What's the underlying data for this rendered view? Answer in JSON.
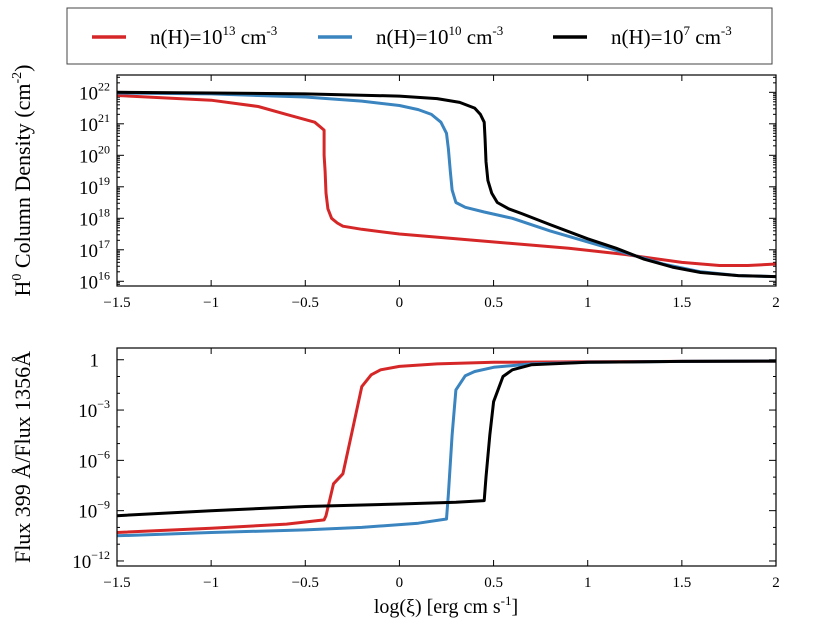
{
  "legend": {
    "entries": [
      {
        "base": "n(H)=10",
        "exp": "13",
        "unit": " cm",
        "unit_exp": "-3",
        "color": "#d62728"
      },
      {
        "base": "n(H)=10",
        "exp": "10",
        "unit": " cm",
        "unit_exp": "-3",
        "color": "#3a84c0"
      },
      {
        "base": "n(H)=10",
        "exp": "7",
        "unit": " cm",
        "unit_exp": "-3",
        "color": "#000000"
      }
    ]
  },
  "xlabel": {
    "pre": "log(ξ) [erg cm s",
    "sup": "-1",
    "post": "]"
  },
  "chart_data": [
    {
      "type": "line",
      "ylabel": {
        "pre": "H",
        "sup1": "0",
        "mid": " Column Density (cm",
        "sup2": "-2",
        "post": ")"
      },
      "xlim": [
        -1.5,
        2
      ],
      "ylim_log10": [
        15.85,
        22.55
      ],
      "xticks": [
        -1.5,
        -1,
        -0.5,
        0,
        0.5,
        1,
        1.5,
        2
      ],
      "xtick_labels": [
        "−1.5",
        "−1",
        "−0.5",
        "0",
        "0.5",
        "1",
        "1.5",
        "2"
      ],
      "yticks": [
        {
          "value": 16,
          "base": "10",
          "exp": "16"
        },
        {
          "value": 17,
          "base": "10",
          "exp": "17"
        },
        {
          "value": 18,
          "base": "10",
          "exp": "18"
        },
        {
          "value": 19,
          "base": "10",
          "exp": "19"
        },
        {
          "value": 20,
          "base": "10",
          "exp": "20"
        },
        {
          "value": 21,
          "base": "10",
          "exp": "21"
        },
        {
          "value": 22,
          "base": "10",
          "exp": "22"
        }
      ],
      "series": [
        {
          "name": "n(H)=1e13",
          "color": "#d62728",
          "points": [
            [
              -1.5,
              21.9
            ],
            [
              -1.0,
              21.75
            ],
            [
              -0.75,
              21.55
            ],
            [
              -0.6,
              21.3
            ],
            [
              -0.45,
              21.05
            ],
            [
              -0.4,
              20.8
            ],
            [
              -0.4,
              20.0
            ],
            [
              -0.395,
              19.5
            ],
            [
              -0.39,
              18.8
            ],
            [
              -0.38,
              18.3
            ],
            [
              -0.36,
              18.0
            ],
            [
              -0.33,
              17.85
            ],
            [
              -0.3,
              17.75
            ],
            [
              -0.2,
              17.65
            ],
            [
              0.0,
              17.5
            ],
            [
              0.3,
              17.35
            ],
            [
              0.6,
              17.2
            ],
            [
              0.9,
              17.05
            ],
            [
              1.2,
              16.85
            ],
            [
              1.5,
              16.6
            ],
            [
              1.7,
              16.5
            ],
            [
              1.85,
              16.5
            ],
            [
              2.0,
              16.55
            ]
          ]
        },
        {
          "name": "n(H)=1e10",
          "color": "#3a84c0",
          "points": [
            [
              -1.5,
              21.98
            ],
            [
              -1.0,
              21.95
            ],
            [
              -0.5,
              21.85
            ],
            [
              -0.2,
              21.72
            ],
            [
              0.0,
              21.58
            ],
            [
              0.1,
              21.45
            ],
            [
              0.17,
              21.3
            ],
            [
              0.22,
              21.05
            ],
            [
              0.25,
              20.7
            ],
            [
              0.26,
              20.2
            ],
            [
              0.27,
              19.5
            ],
            [
              0.28,
              18.9
            ],
            [
              0.3,
              18.5
            ],
            [
              0.35,
              18.35
            ],
            [
              0.45,
              18.2
            ],
            [
              0.6,
              18.0
            ],
            [
              0.8,
              17.6
            ],
            [
              1.0,
              17.25
            ],
            [
              1.2,
              16.9
            ],
            [
              1.4,
              16.55
            ],
            [
              1.6,
              16.3
            ],
            [
              1.8,
              16.18
            ],
            [
              2.0,
              16.15
            ]
          ]
        },
        {
          "name": "n(H)=1e7",
          "color": "#000000",
          "points": [
            [
              -1.5,
              22.0
            ],
            [
              -1.0,
              21.98
            ],
            [
              -0.5,
              21.95
            ],
            [
              0.0,
              21.88
            ],
            [
              0.2,
              21.8
            ],
            [
              0.32,
              21.68
            ],
            [
              0.4,
              21.5
            ],
            [
              0.43,
              21.3
            ],
            [
              0.45,
              21.05
            ],
            [
              0.455,
              20.5
            ],
            [
              0.46,
              19.8
            ],
            [
              0.47,
              19.2
            ],
            [
              0.49,
              18.8
            ],
            [
              0.52,
              18.5
            ],
            [
              0.58,
              18.3
            ],
            [
              0.65,
              18.15
            ],
            [
              0.8,
              17.8
            ],
            [
              1.0,
              17.35
            ],
            [
              1.15,
              17.05
            ],
            [
              1.3,
              16.7
            ],
            [
              1.45,
              16.45
            ],
            [
              1.6,
              16.28
            ],
            [
              1.8,
              16.18
            ],
            [
              2.0,
              16.15
            ]
          ]
        }
      ]
    },
    {
      "type": "line",
      "ylabel": {
        "pre": "Flux 399 Å/Flux 1356Å"
      },
      "xlim": [
        -1.5,
        2
      ],
      "ylim_log10": [
        -12.3,
        0.7
      ],
      "xticks": [
        -1.5,
        -1,
        -0.5,
        0,
        0.5,
        1,
        1.5,
        2
      ],
      "xtick_labels": [
        "−1.5",
        "−1",
        "−0.5",
        "0",
        "0.5",
        "1",
        "1.5",
        "2"
      ],
      "yticks": [
        {
          "value": 0,
          "base": "1",
          "exp": ""
        },
        {
          "value": -3,
          "base": "10",
          "exp": "−3"
        },
        {
          "value": -6,
          "base": "10",
          "exp": "−6"
        },
        {
          "value": -9,
          "base": "10",
          "exp": "−9"
        },
        {
          "value": -12,
          "base": "10",
          "exp": "−12"
        }
      ],
      "series": [
        {
          "name": "n(H)=1e13",
          "color": "#d62728",
          "points": [
            [
              -1.5,
              -10.3
            ],
            [
              -1.0,
              -10.05
            ],
            [
              -0.6,
              -9.8
            ],
            [
              -0.4,
              -9.55
            ],
            [
              -0.39,
              -9.3
            ],
            [
              -0.35,
              -7.4
            ],
            [
              -0.3,
              -6.8
            ],
            [
              -0.25,
              -4.2
            ],
            [
              -0.2,
              -1.6
            ],
            [
              -0.15,
              -0.9
            ],
            [
              -0.1,
              -0.6
            ],
            [
              0.0,
              -0.4
            ],
            [
              0.2,
              -0.25
            ],
            [
              0.5,
              -0.15
            ],
            [
              1.0,
              -0.12
            ],
            [
              1.5,
              -0.1
            ],
            [
              2.0,
              -0.08
            ]
          ]
        },
        {
          "name": "n(H)=1e10",
          "color": "#3a84c0",
          "points": [
            [
              -1.5,
              -10.5
            ],
            [
              -1.0,
              -10.3
            ],
            [
              -0.5,
              -10.15
            ],
            [
              -0.2,
              -10.0
            ],
            [
              0.1,
              -9.75
            ],
            [
              0.25,
              -9.5
            ],
            [
              0.26,
              -8.0
            ],
            [
              0.28,
              -4.5
            ],
            [
              0.3,
              -1.8
            ],
            [
              0.35,
              -0.95
            ],
            [
              0.4,
              -0.7
            ],
            [
              0.5,
              -0.45
            ],
            [
              0.7,
              -0.25
            ],
            [
              1.0,
              -0.15
            ],
            [
              1.5,
              -0.1
            ],
            [
              2.0,
              -0.08
            ]
          ]
        },
        {
          "name": "n(H)=1e7",
          "color": "#000000",
          "points": [
            [
              -1.5,
              -9.3
            ],
            [
              -1.0,
              -9.0
            ],
            [
              -0.5,
              -8.75
            ],
            [
              0.0,
              -8.6
            ],
            [
              0.3,
              -8.5
            ],
            [
              0.45,
              -8.4
            ],
            [
              0.46,
              -7.0
            ],
            [
              0.48,
              -4.5
            ],
            [
              0.5,
              -2.5
            ],
            [
              0.55,
              -1.0
            ],
            [
              0.6,
              -0.6
            ],
            [
              0.7,
              -0.3
            ],
            [
              1.0,
              -0.15
            ],
            [
              1.5,
              -0.1
            ],
            [
              2.0,
              -0.08
            ]
          ]
        }
      ]
    }
  ]
}
